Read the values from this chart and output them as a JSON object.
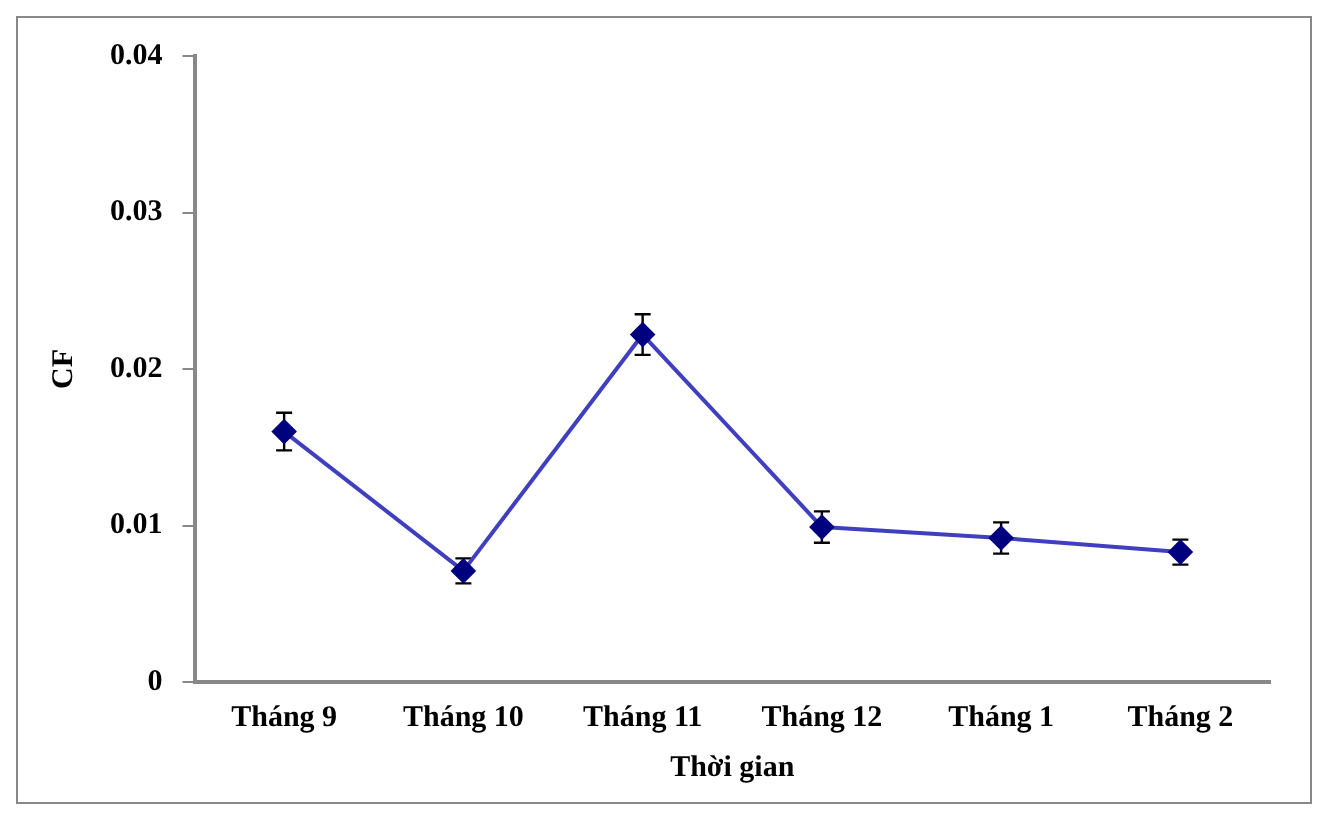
{
  "chart_data": {
    "type": "line",
    "xlabel": "Thời gian",
    "ylabel": "CF",
    "categories": [
      "Tháng 9",
      "Tháng 10",
      "Tháng 11",
      "Tháng 12",
      "Tháng 1",
      "Tháng 2"
    ],
    "series": [
      {
        "color": "#3f3fbf",
        "values": [
          0.016,
          0.0071,
          0.0222,
          0.0099,
          0.0092,
          0.0083
        ],
        "errors": [
          0.0012,
          0.0008,
          0.0013,
          0.001,
          0.001,
          0.0008
        ]
      }
    ],
    "ylim": [
      0,
      0.04
    ],
    "yticks": [
      {
        "value": 0,
        "label": "0"
      },
      0.01,
      0.02,
      0.03,
      0.04
    ],
    "grid": false,
    "legend": false,
    "marker": "diamond",
    "line_style": "solid"
  }
}
